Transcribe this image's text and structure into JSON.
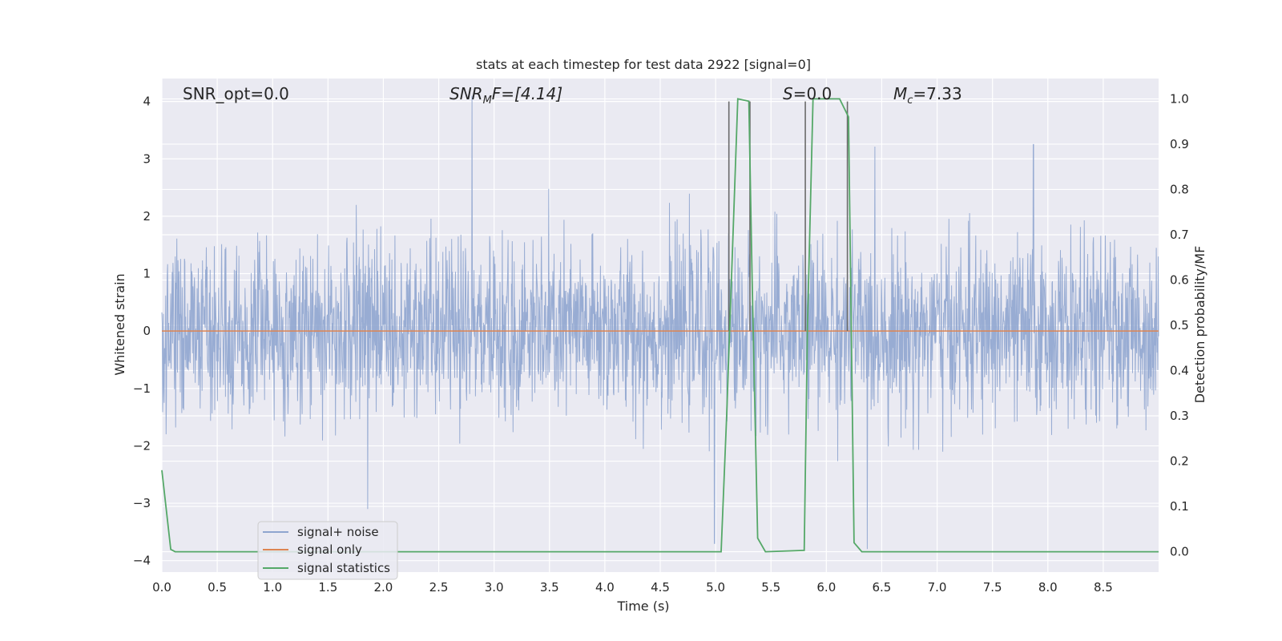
{
  "chart_data": {
    "type": "line",
    "title": "stats at each timestep for test data 2922 [signal=0]",
    "xlabel": "Time (s)",
    "ylabel_left": "Whitened strain",
    "ylabel_right": "Detection probability/MF",
    "xlim": [
      0,
      9
    ],
    "ylim_left": [
      -4.2,
      4.4
    ],
    "ylim_right": [
      -0.045,
      1.045
    ],
    "x_ticks": [
      "0.0",
      "0.5",
      "1.0",
      "1.5",
      "2.0",
      "2.5",
      "3.0",
      "3.5",
      "4.0",
      "4.5",
      "5.0",
      "5.5",
      "6.0",
      "6.5",
      "7.0",
      "7.5",
      "8.0",
      "8.5"
    ],
    "x_tick_values": [
      0,
      0.5,
      1,
      1.5,
      2,
      2.5,
      3,
      3.5,
      4,
      4.5,
      5,
      5.5,
      6,
      6.5,
      7,
      7.5,
      8,
      8.5
    ],
    "y_ticks_left": [
      "4",
      "3",
      "2",
      "1",
      "0",
      "−1",
      "−2",
      "−3",
      "−4"
    ],
    "y_tick_values_left": [
      4,
      3,
      2,
      1,
      0,
      -1,
      -2,
      -3,
      -4
    ],
    "y_ticks_right": [
      "1.0",
      "0.9",
      "0.8",
      "0.7",
      "0.6",
      "0.5",
      "0.4",
      "0.3",
      "0.2",
      "0.1",
      "0.0"
    ],
    "y_tick_values_right": [
      1.0,
      0.9,
      0.8,
      0.7,
      0.6,
      0.5,
      0.4,
      0.3,
      0.2,
      0.1,
      0.0
    ],
    "annotations": {
      "snr_opt": "SNR_opt=0.0",
      "snr_mf_main": "SNR",
      "snr_mf_sub": "M",
      "snr_mf_rest": "F=[4.14]",
      "s_main": "S",
      "s_rest": "=0.0",
      "mc_main": "M",
      "mc_sub": "c",
      "mc_rest": "=7.33"
    },
    "series": [
      {
        "name": "signal+ noise",
        "color": "#8fa5cf",
        "description_values": "whitened noise, amplitude mostly within about ±2, spikes up to ~4 at t≈2.8 and down to ~-3.7 at t≈5.0 and t≈6.4"
      },
      {
        "name": "signal only",
        "color": "#dd8452",
        "x": [
          0,
          9
        ],
        "y": [
          0,
          0
        ]
      },
      {
        "name": "signal statistics",
        "color": "#55a868",
        "axis": "right",
        "x": [
          0.0,
          0.08,
          0.12,
          0.2,
          5.05,
          5.1,
          5.2,
          5.3,
          5.33,
          5.38,
          5.45,
          5.8,
          5.83,
          5.88,
          6.12,
          6.2,
          6.25,
          6.32,
          9.0
        ],
        "y": [
          0.18,
          0.005,
          0.0,
          0.0,
          0.0,
          0.3,
          1.0,
          0.995,
          0.6,
          0.03,
          0.0,
          0.003,
          0.5,
          1.0,
          1.0,
          0.96,
          0.02,
          0.0,
          0.0
        ]
      }
    ],
    "vlines": [
      5.12,
      5.31,
      5.81,
      6.19
    ],
    "vline_range_left": [
      0,
      4
    ],
    "vline_color": "#6b6b6b",
    "legend": {
      "location": "lower-left",
      "entries": [
        "signal+ noise",
        "signal only",
        "signal statistics"
      ]
    },
    "grid": true,
    "background": "#eaeaf2"
  }
}
